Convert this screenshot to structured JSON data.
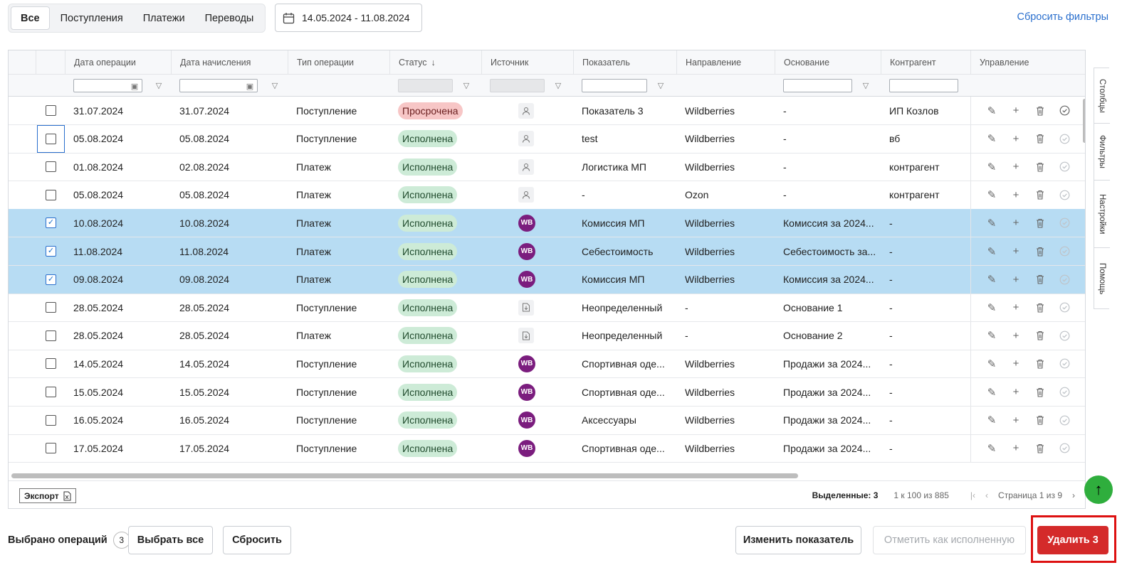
{
  "tabs": [
    {
      "label": "Все",
      "active": true
    },
    {
      "label": "Поступления",
      "active": false
    },
    {
      "label": "Платежи",
      "active": false
    },
    {
      "label": "Переводы",
      "active": false
    }
  ],
  "date_range": "14.05.2024 - 11.08.2024",
  "reset_filters": "Сбросить фильтры",
  "columns": [
    "Дата операции",
    "Дата начисления",
    "Тип операции",
    "Статус",
    "Источник",
    "Показатель",
    "Направление",
    "Основание",
    "Контрагент",
    "Управление"
  ],
  "sort_indicator": "↓",
  "rows": [
    {
      "date_op": "31.07.2024",
      "date_acc": "31.07.2024",
      "type": "Поступление",
      "status": "Просрочена",
      "status_kind": "over",
      "source": "user-icon",
      "metric": "Показатель 3",
      "direction": "Wildberries",
      "basis": "-",
      "counterparty": "ИП Козлов",
      "checked": false,
      "done": false
    },
    {
      "date_op": "05.08.2024",
      "date_acc": "05.08.2024",
      "type": "Поступление",
      "status": "Исполнена",
      "status_kind": "done",
      "source": "user-icon",
      "metric": "test",
      "direction": "Wildberries",
      "basis": "-",
      "counterparty": "вб",
      "checked": false,
      "done": true,
      "focus": true
    },
    {
      "date_op": "01.08.2024",
      "date_acc": "02.08.2024",
      "type": "Платеж",
      "status": "Исполнена",
      "status_kind": "done",
      "source": "user-icon",
      "metric": "Логистика МП",
      "direction": "Wildberries",
      "basis": "-",
      "counterparty": "контрагент",
      "checked": false,
      "done": true
    },
    {
      "date_op": "05.08.2024",
      "date_acc": "05.08.2024",
      "type": "Платеж",
      "status": "Исполнена",
      "status_kind": "done",
      "source": "user-icon",
      "metric": "-",
      "direction": "Ozon",
      "basis": "-",
      "counterparty": "контрагент",
      "checked": false,
      "done": true
    },
    {
      "date_op": "10.08.2024",
      "date_acc": "10.08.2024",
      "type": "Платеж",
      "status": "Исполнена",
      "status_kind": "done",
      "source": "WB",
      "metric": "Комиссия МП",
      "direction": "Wildberries",
      "basis": "Комиссия за 2024...",
      "counterparty": "-",
      "checked": true,
      "done": true
    },
    {
      "date_op": "11.08.2024",
      "date_acc": "11.08.2024",
      "type": "Платеж",
      "status": "Исполнена",
      "status_kind": "done",
      "source": "WB",
      "metric": "Себестоимость",
      "direction": "Wildberries",
      "basis": "Себестоимость за...",
      "counterparty": "-",
      "checked": true,
      "done": true
    },
    {
      "date_op": "09.08.2024",
      "date_acc": "09.08.2024",
      "type": "Платеж",
      "status": "Исполнена",
      "status_kind": "done",
      "source": "WB",
      "metric": "Комиссия МП",
      "direction": "Wildberries",
      "basis": "Комиссия за 2024...",
      "counterparty": "-",
      "checked": true,
      "done": true
    },
    {
      "date_op": "28.05.2024",
      "date_acc": "28.05.2024",
      "type": "Поступление",
      "status": "Исполнена",
      "status_kind": "done",
      "source": "file-import-icon",
      "metric": "Неопределенный",
      "direction": "-",
      "basis": "Основание 1",
      "counterparty": "-",
      "checked": false,
      "done": true
    },
    {
      "date_op": "28.05.2024",
      "date_acc": "28.05.2024",
      "type": "Платеж",
      "status": "Исполнена",
      "status_kind": "done",
      "source": "file-import-icon",
      "metric": "Неопределенный",
      "direction": "-",
      "basis": "Основание 2",
      "counterparty": "-",
      "checked": false,
      "done": true
    },
    {
      "date_op": "14.05.2024",
      "date_acc": "14.05.2024",
      "type": "Поступление",
      "status": "Исполнена",
      "status_kind": "done",
      "source": "WB",
      "metric": "Спортивная оде...",
      "direction": "Wildberries",
      "basis": "Продажи за 2024...",
      "counterparty": "-",
      "checked": false,
      "done": true
    },
    {
      "date_op": "15.05.2024",
      "date_acc": "15.05.2024",
      "type": "Поступление",
      "status": "Исполнена",
      "status_kind": "done",
      "source": "WB",
      "metric": "Спортивная оде...",
      "direction": "Wildberries",
      "basis": "Продажи за 2024...",
      "counterparty": "-",
      "checked": false,
      "done": true
    },
    {
      "date_op": "16.05.2024",
      "date_acc": "16.05.2024",
      "type": "Поступление",
      "status": "Исполнена",
      "status_kind": "done",
      "source": "WB",
      "metric": "Аксессуары",
      "direction": "Wildberries",
      "basis": "Продажи за 2024...",
      "counterparty": "-",
      "checked": false,
      "done": true
    },
    {
      "date_op": "17.05.2024",
      "date_acc": "17.05.2024",
      "type": "Поступление",
      "status": "Исполнена",
      "status_kind": "done",
      "source": "WB",
      "metric": "Спортивная оде...",
      "direction": "Wildberries",
      "basis": "Продажи за 2024...",
      "counterparty": "-",
      "checked": false,
      "done": true
    }
  ],
  "footer": {
    "export_label": "Экспорт",
    "selected_label": "Выделенные:",
    "selected_count": "3",
    "range": "1 к 100 из 885",
    "page": "Страница 1 из 9"
  },
  "side_tabs": [
    "Столбцы",
    "Фильтры",
    "Настройки",
    "Помощь"
  ],
  "bottom": {
    "selected_ops_label": "Выбрано операций",
    "selected_ops_count": "3",
    "select_all": "Выбрать все",
    "reset": "Сбросить",
    "change_metric": "Изменить показатель",
    "mark_done": "Отметить как исполненную",
    "delete": "Удалить 3"
  },
  "colors": {
    "accent": "#2a6fcd",
    "selected_row": "#b7dcf3",
    "wb": "#7b1d7e",
    "danger": "#d42a2a",
    "success_bg": "#cdebd7",
    "overdue_bg": "#f7c6c6",
    "scroll_top": "#2fae3d"
  }
}
